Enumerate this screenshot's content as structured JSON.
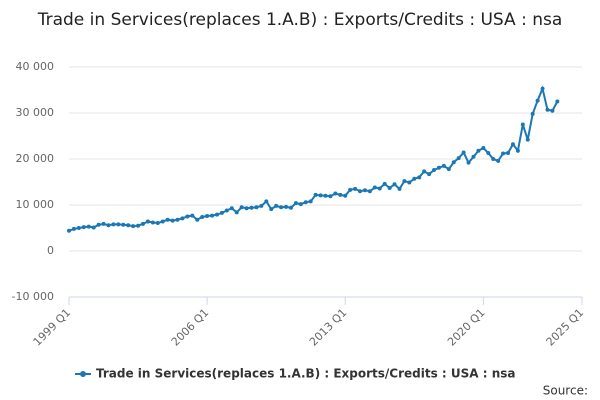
{
  "chart_data": {
    "type": "line",
    "title": "Trade in Services(replaces 1.A.B) : Exports/Credits : USA : nsa",
    "x": [
      "1999 Q1",
      "1999 Q2",
      "1999 Q3",
      "1999 Q4",
      "2000 Q1",
      "2000 Q2",
      "2000 Q3",
      "2000 Q4",
      "2001 Q1",
      "2001 Q2",
      "2001 Q3",
      "2001 Q4",
      "2002 Q1",
      "2002 Q2",
      "2002 Q3",
      "2002 Q4",
      "2003 Q1",
      "2003 Q2",
      "2003 Q3",
      "2003 Q4",
      "2004 Q1",
      "2004 Q2",
      "2004 Q3",
      "2004 Q4",
      "2005 Q1",
      "2005 Q2",
      "2005 Q3",
      "2005 Q4",
      "2006 Q1",
      "2006 Q2",
      "2006 Q3",
      "2006 Q4",
      "2007 Q1",
      "2007 Q2",
      "2007 Q3",
      "2007 Q4",
      "2008 Q1",
      "2008 Q2",
      "2008 Q3",
      "2008 Q4",
      "2009 Q1",
      "2009 Q2",
      "2009 Q3",
      "2009 Q4",
      "2010 Q1",
      "2010 Q2",
      "2010 Q3",
      "2010 Q4",
      "2011 Q1",
      "2011 Q2",
      "2011 Q3",
      "2011 Q4",
      "2012 Q1",
      "2012 Q2",
      "2012 Q3",
      "2012 Q4",
      "2013 Q1",
      "2013 Q2",
      "2013 Q3",
      "2013 Q4",
      "2014 Q1",
      "2014 Q2",
      "2014 Q3",
      "2014 Q4",
      "2015 Q1",
      "2015 Q2",
      "2015 Q3",
      "2015 Q4",
      "2016 Q1",
      "2016 Q2",
      "2016 Q3",
      "2016 Q4",
      "2017 Q1",
      "2017 Q2",
      "2017 Q3",
      "2017 Q4",
      "2018 Q1",
      "2018 Q2",
      "2018 Q3",
      "2018 Q4",
      "2019 Q1",
      "2019 Q2",
      "2019 Q3",
      "2019 Q4",
      "2020 Q1",
      "2020 Q2",
      "2020 Q3",
      "2020 Q4",
      "2021 Q1",
      "2021 Q2",
      "2021 Q3",
      "2021 Q4",
      "2022 Q1",
      "2022 Q2",
      "2022 Q3",
      "2022 Q4",
      "2023 Q1",
      "2023 Q2",
      "2023 Q3",
      "2023 Q4"
    ],
    "series": [
      {
        "name": "Trade in Services(replaces 1.A.B) : Exports/Credits : USA : nsa",
        "color": "#1b78b4",
        "values": [
          4400,
          4800,
          5000,
          5200,
          5300,
          5100,
          5700,
          5900,
          5600,
          5800,
          5800,
          5700,
          5600,
          5400,
          5500,
          5900,
          6400,
          6200,
          6100,
          6400,
          6800,
          6600,
          6800,
          7100,
          7500,
          7700,
          6800,
          7400,
          7600,
          7700,
          7900,
          8300,
          8800,
          9300,
          8400,
          9500,
          9300,
          9400,
          9500,
          9800,
          10800,
          9100,
          9800,
          9500,
          9600,
          9400,
          10400,
          10200,
          10600,
          10800,
          12200,
          12100,
          12000,
          11900,
          12500,
          12200,
          12000,
          13300,
          13500,
          13000,
          13200,
          13000,
          13800,
          13600,
          14600,
          13700,
          14500,
          13500,
          15200,
          14900,
          15700,
          16000,
          17300,
          16700,
          17600,
          18100,
          18500,
          17800,
          19300,
          20200,
          21400,
          19200,
          20500,
          21800,
          22400,
          21300,
          20000,
          19600,
          21200,
          21300,
          23200,
          21800,
          27500,
          24200,
          29800,
          32700,
          35300,
          30700,
          30500,
          32500
        ]
      }
    ],
    "xlim": [
      "1999 Q1",
      "2025 Q1"
    ],
    "xticks": [
      "1999 Q1",
      "2006 Q1",
      "2013 Q1",
      "2020 Q1",
      "2025 Q1"
    ],
    "ylim": [
      -10000,
      40000
    ],
    "yticks": [
      {
        "value": -10000,
        "label": "-10 000"
      },
      0,
      {
        "value": 10000,
        "label": "10 000"
      },
      {
        "value": 20000,
        "label": "20 000"
      },
      {
        "value": 30000,
        "label": "30 000"
      },
      {
        "value": 40000,
        "label": "40 000"
      }
    ],
    "grid": true,
    "source": "Source:"
  }
}
